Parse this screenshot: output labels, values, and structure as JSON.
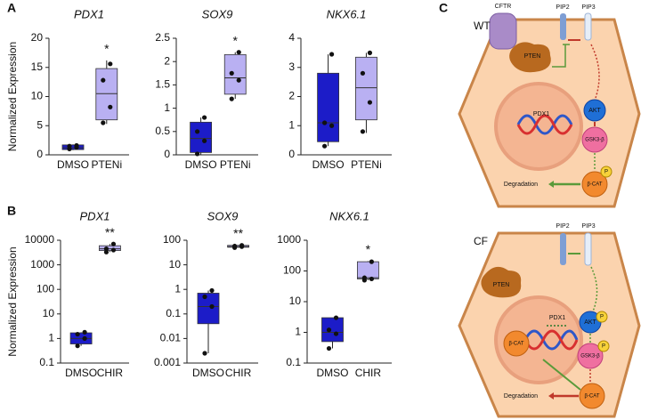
{
  "figure_labels": [
    "A",
    "B",
    "C"
  ],
  "chart_data": [
    {
      "type": "box",
      "title": "PDX1",
      "y_label": "Normalized Expression",
      "categories": [
        "DMSO",
        "PTENi"
      ],
      "colors": [
        "#1c1cc8",
        "#b9b0f2"
      ],
      "boxes": [
        {
          "min": 0.8,
          "q1": 0.9,
          "median": 1.2,
          "q3": 1.7,
          "max": 1.8,
          "points": [
            1.0,
            1.3,
            1.5,
            1.6
          ]
        },
        {
          "min": 5.3,
          "q1": 6.0,
          "median": 10.5,
          "q3": 14.8,
          "max": 16.2,
          "points": [
            5.5,
            8.2,
            12.8,
            15.6
          ]
        }
      ],
      "annotation": "*",
      "ylim": [
        0,
        20
      ],
      "yticks": [
        0,
        5,
        10,
        15,
        20
      ],
      "log_scale": false
    },
    {
      "type": "box",
      "title": "SOX9",
      "categories": [
        "DMSO",
        "PTENi"
      ],
      "colors": [
        "#1c1cc8",
        "#b9b0f2"
      ],
      "boxes": [
        {
          "min": 0,
          "q1": 0.05,
          "median": 0.35,
          "q3": 0.7,
          "max": 0.8,
          "points": [
            0.02,
            0.3,
            0.5,
            0.8
          ]
        },
        {
          "min": 1.2,
          "q1": 1.3,
          "median": 1.65,
          "q3": 2.15,
          "max": 2.2,
          "points": [
            1.2,
            1.6,
            1.75,
            2.2
          ]
        }
      ],
      "annotation": "*",
      "ylim": [
        0,
        2.5
      ],
      "yticks": [
        0,
        0.5,
        1,
        1.5,
        2,
        2.5
      ],
      "log_scale": false
    },
    {
      "type": "box",
      "title": "NKX6.1",
      "categories": [
        "DMSO",
        "PTENi"
      ],
      "colors": [
        "#1c1cc8",
        "#b9b0f2"
      ],
      "boxes": [
        {
          "min": 0.3,
          "q1": 0.45,
          "median": 1.1,
          "q3": 2.8,
          "max": 3.45,
          "points": [
            0.3,
            1.0,
            1.1,
            3.45
          ]
        },
        {
          "min": 0.75,
          "q1": 1.2,
          "median": 2.3,
          "q3": 3.35,
          "max": 3.5,
          "points": [
            0.8,
            1.8,
            2.8,
            3.5
          ]
        }
      ],
      "ylim": [
        0,
        4
      ],
      "yticks": [
        0,
        1,
        2,
        3,
        4
      ],
      "log_scale": false
    },
    {
      "type": "box",
      "title": "PDX1",
      "y_label": "Normalized Expression",
      "categories": [
        "DMSO",
        "CHIR"
      ],
      "colors": [
        "#1c1cc8",
        "#b9b0f2"
      ],
      "boxes": [
        {
          "min": 0.5,
          "q1": 0.6,
          "median": 1.0,
          "q3": 1.7,
          "max": 1.8,
          "points": [
            0.5,
            1.0,
            1.5,
            1.8
          ]
        },
        {
          "min": 3300,
          "q1": 3800,
          "median": 4500,
          "q3": 6000,
          "max": 7000,
          "points": [
            3300,
            4000,
            4500,
            7000
          ]
        }
      ],
      "annotation": "**",
      "ylim": [
        0.1,
        10000
      ],
      "yticks": [
        0.1,
        1,
        10,
        100,
        1000,
        10000
      ],
      "log_scale": true
    },
    {
      "type": "box",
      "title": "SOX9",
      "categories": [
        "DMSO",
        "CHIR"
      ],
      "colors": [
        "#1c1cc8",
        "#b9b0f2"
      ],
      "boxes": [
        {
          "min": 0.0025,
          "q1": 0.04,
          "median": 0.2,
          "q3": 0.7,
          "max": 0.9,
          "points": [
            0.0025,
            0.2,
            0.5,
            0.9
          ]
        },
        {
          "min": 50,
          "q1": 52,
          "median": 55,
          "q3": 62,
          "max": 65,
          "points": [
            50,
            55,
            58,
            62
          ]
        }
      ],
      "annotation": "**",
      "ylim": [
        0.001,
        100
      ],
      "yticks": [
        0.001,
        0.01,
        0.1,
        1,
        10,
        100
      ],
      "log_scale": true
    },
    {
      "type": "box",
      "title": "NKX6.1",
      "categories": [
        "DMSO",
        "CHIR"
      ],
      "colors": [
        "#1c1cc8",
        "#b9b0f2"
      ],
      "boxes": [
        {
          "min": 0.3,
          "q1": 0.5,
          "median": 1.0,
          "q3": 3,
          "max": 3,
          "points": [
            0.3,
            0.9,
            1.2,
            3
          ]
        },
        {
          "min": 50,
          "q1": 55,
          "median": 60,
          "q3": 200,
          "max": 210,
          "points": [
            50,
            55,
            60,
            200
          ]
        }
      ],
      "annotation": "*",
      "ylim": [
        0.1,
        1000
      ],
      "yticks": [
        0.1,
        1,
        10,
        100,
        1000
      ],
      "log_scale": true
    }
  ],
  "diagram": {
    "wt": {
      "name": "WT",
      "cftr": "CFTR",
      "pip2": "PIP2",
      "pip3": "PIP3",
      "pten": "PTEN",
      "akt": "AKT",
      "gsk3b": "GSK3-β",
      "pdx1": "PDX1",
      "bcat": "β-CAT",
      "phospho": "P",
      "degradation": "Degradation"
    },
    "cf": {
      "name": "CF",
      "pip2": "PIP2",
      "pip3": "PIP3",
      "pten": "PTEN",
      "akt": "AKT",
      "akt_phospho": "P",
      "gsk3b": "GSK3-β",
      "gsk3b_phospho": "P",
      "pdx1": "PDX1",
      "nuclear_bcat": "β-CAT",
      "bcat": "β-CAT",
      "degradation": "Degradation"
    }
  }
}
